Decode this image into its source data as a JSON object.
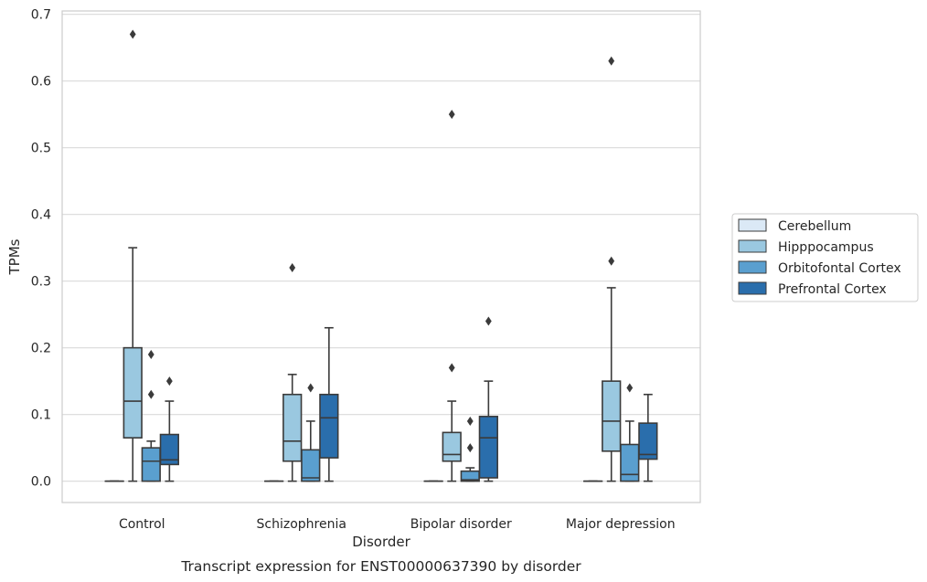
{
  "chart_data": {
    "type": "box",
    "title": "",
    "caption": "Transcript expression for ENST00000637390 by disorder",
    "xlabel": "Disorder",
    "ylabel": "TPMs",
    "ylim": [
      -0.032,
      0.705
    ],
    "yticks": [
      0.0,
      0.1,
      0.2,
      0.3,
      0.4,
      0.5,
      0.6,
      0.7
    ],
    "ytick_labels": [
      "0.0",
      "0.1",
      "0.2",
      "0.3",
      "0.4",
      "0.5",
      "0.6",
      "0.7"
    ],
    "grid": "horizontal",
    "legend_position": "right",
    "categories": [
      "Control",
      "Schizophrenia",
      "Bipolar disorder",
      "Major depression"
    ],
    "series": [
      {
        "name": "Cerebellum",
        "color": "#dbe9f6",
        "boxes": [
          {
            "q1": 0,
            "median": 0,
            "q3": 0,
            "whisker_low": 0,
            "whisker_high": 0,
            "outliers": []
          },
          {
            "q1": 0,
            "median": 0,
            "q3": 0,
            "whisker_low": 0,
            "whisker_high": 0,
            "outliers": []
          },
          {
            "q1": 0,
            "median": 0,
            "q3": 0,
            "whisker_low": 0,
            "whisker_high": 0,
            "outliers": []
          },
          {
            "q1": 0,
            "median": 0,
            "q3": 0,
            "whisker_low": 0,
            "whisker_high": 0,
            "outliers": []
          }
        ]
      },
      {
        "name": "Hipppocampus",
        "color": "#9ac8e0",
        "boxes": [
          {
            "q1": 0.065,
            "median": 0.12,
            "q3": 0.2,
            "whisker_low": 0,
            "whisker_high": 0.35,
            "outliers": [
              0.67
            ]
          },
          {
            "q1": 0.03,
            "median": 0.06,
            "q3": 0.13,
            "whisker_low": 0,
            "whisker_high": 0.16,
            "outliers": [
              0.32
            ]
          },
          {
            "q1": 0.03,
            "median": 0.04,
            "q3": 0.073,
            "whisker_low": 0,
            "whisker_high": 0.12,
            "outliers": [
              0.55,
              0.17
            ]
          },
          {
            "q1": 0.045,
            "median": 0.09,
            "q3": 0.15,
            "whisker_low": 0,
            "whisker_high": 0.29,
            "outliers": [
              0.63,
              0.33
            ]
          }
        ]
      },
      {
        "name": "Orbitofontal Cortex",
        "color": "#5a9fcf",
        "boxes": [
          {
            "q1": 0,
            "median": 0.03,
            "q3": 0.05,
            "whisker_low": 0,
            "whisker_high": 0.06,
            "outliers": [
              0.19,
              0.13
            ]
          },
          {
            "q1": 0,
            "median": 0.005,
            "q3": 0.047,
            "whisker_low": 0,
            "whisker_high": 0.09,
            "outliers": [
              0.14
            ]
          },
          {
            "q1": 0,
            "median": 0.002,
            "q3": 0.015,
            "whisker_low": 0,
            "whisker_high": 0.02,
            "outliers": [
              0.09,
              0.05
            ]
          },
          {
            "q1": 0,
            "median": 0.01,
            "q3": 0.055,
            "whisker_low": 0,
            "whisker_high": 0.09,
            "outliers": [
              0.14
            ]
          }
        ]
      },
      {
        "name": "Prefrontal Cortex",
        "color": "#2a6eac",
        "boxes": [
          {
            "q1": 0.025,
            "median": 0.032,
            "q3": 0.07,
            "whisker_low": 0,
            "whisker_high": 0.12,
            "outliers": [
              0.15
            ]
          },
          {
            "q1": 0.035,
            "median": 0.095,
            "q3": 0.13,
            "whisker_low": 0,
            "whisker_high": 0.23,
            "outliers": []
          },
          {
            "q1": 0.005,
            "median": 0.065,
            "q3": 0.097,
            "whisker_low": 0,
            "whisker_high": 0.15,
            "outliers": [
              0.24
            ]
          },
          {
            "q1": 0.033,
            "median": 0.04,
            "q3": 0.087,
            "whisker_low": 0,
            "whisker_high": 0.13,
            "outliers": []
          }
        ]
      }
    ]
  }
}
